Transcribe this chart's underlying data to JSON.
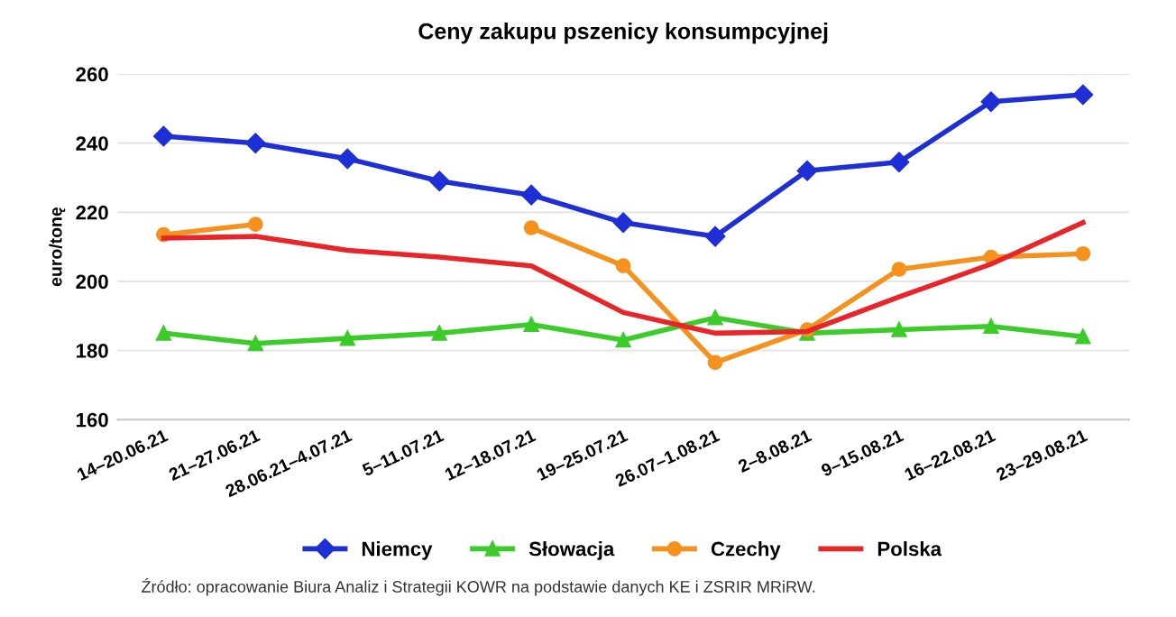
{
  "chart_data": {
    "type": "line",
    "title": "Ceny zakupu pszenicy konsumpcyjnej",
    "ylabel": "euro/tonę",
    "categories": [
      "14–20.06.21",
      "21–27.06.21",
      "28.06.21–4.07.21",
      "5–11.07.21",
      "12–18.07.21",
      "19–25.07.21",
      "26.07–1.08.21",
      "2–8.08.21",
      "9–15.08.21",
      "16–22.08.21",
      "23–29.08.21"
    ],
    "series": [
      {
        "name": "Niemcy",
        "color": "#1f2fd6",
        "marker": "diamond",
        "values": [
          242,
          240,
          235.5,
          229,
          225,
          217,
          213,
          232,
          234.5,
          252,
          254
        ]
      },
      {
        "name": "Słowacja",
        "color": "#3ccc2a",
        "marker": "triangle",
        "values": [
          185,
          182,
          183.5,
          185,
          187.5,
          183,
          189.5,
          185,
          186,
          187,
          184
        ]
      },
      {
        "name": "Czechy",
        "color": "#f5921e",
        "marker": "circle",
        "values": [
          213.5,
          216.5,
          null,
          null,
          215.5,
          204.5,
          176.5,
          186,
          203.5,
          207,
          208
        ]
      },
      {
        "name": "Polska",
        "color": "#e8262a",
        "marker": "none",
        "values": [
          212.5,
          213,
          209,
          207,
          204.5,
          191,
          185,
          185.5,
          195.5,
          205,
          217
        ]
      }
    ],
    "ylim": [
      160,
      260
    ],
    "yticks": [
      160,
      180,
      200,
      220,
      240,
      260
    ],
    "grid": "y",
    "legend": "bottom",
    "annotations": [
      "Źródło: opracowanie Biura Analiz i Strategii KOWR na podstawie danych KE i ZSRIR MRiRW."
    ]
  }
}
